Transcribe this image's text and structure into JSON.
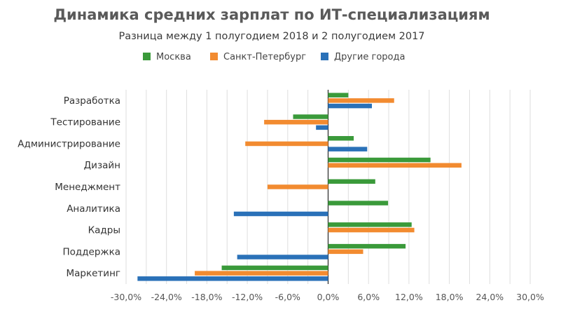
{
  "chart_data": {
    "type": "bar",
    "orientation": "horizontal",
    "title": "Динамика средних зарплат по ИТ-специализациям",
    "subtitle": "Разница между 1 полугодием 2018 и 2 полугодием 2017",
    "categories": [
      "Разработка",
      "Тестирование",
      "Администрирование",
      "Дизайн",
      "Менеджмент",
      "Аналитика",
      "Кадры",
      "Поддержка",
      "Маркетинг"
    ],
    "series": [
      {
        "name": "Москва",
        "color": "#3a9a3a",
        "values": [
          3.0,
          -5.2,
          3.8,
          15.2,
          7.0,
          8.9,
          12.4,
          11.5,
          -15.8
        ]
      },
      {
        "name": "Санкт-Петербург",
        "color": "#f28b30",
        "values": [
          9.8,
          -9.5,
          -12.3,
          19.8,
          -9.0,
          null,
          12.8,
          5.2,
          -19.8
        ]
      },
      {
        "name": "Другие города",
        "color": "#2a71b8",
        "values": [
          6.5,
          -1.8,
          5.8,
          null,
          null,
          -14.0,
          null,
          -13.5,
          -28.3
        ]
      }
    ],
    "xlim": [
      -30,
      30
    ],
    "x_ticks": [
      -30,
      -27,
      -24,
      -21,
      -18,
      -15,
      -12,
      -9,
      -6,
      -3,
      0,
      3,
      6,
      9,
      12,
      15,
      18,
      21,
      24,
      27,
      30
    ],
    "x_tick_labels": [
      "-30,0%",
      "-24,0%",
      "-18,0%",
      "-12,0%",
      "-6,0%",
      "0,0%",
      "6,0%",
      "12,0%",
      "18,0%",
      "24,0%",
      "30,0%"
    ],
    "x_tick_label_values": [
      -30,
      -24,
      -18,
      -12,
      -6,
      0,
      6,
      12,
      18,
      24,
      30
    ],
    "grid": true,
    "legend_position": "top"
  }
}
